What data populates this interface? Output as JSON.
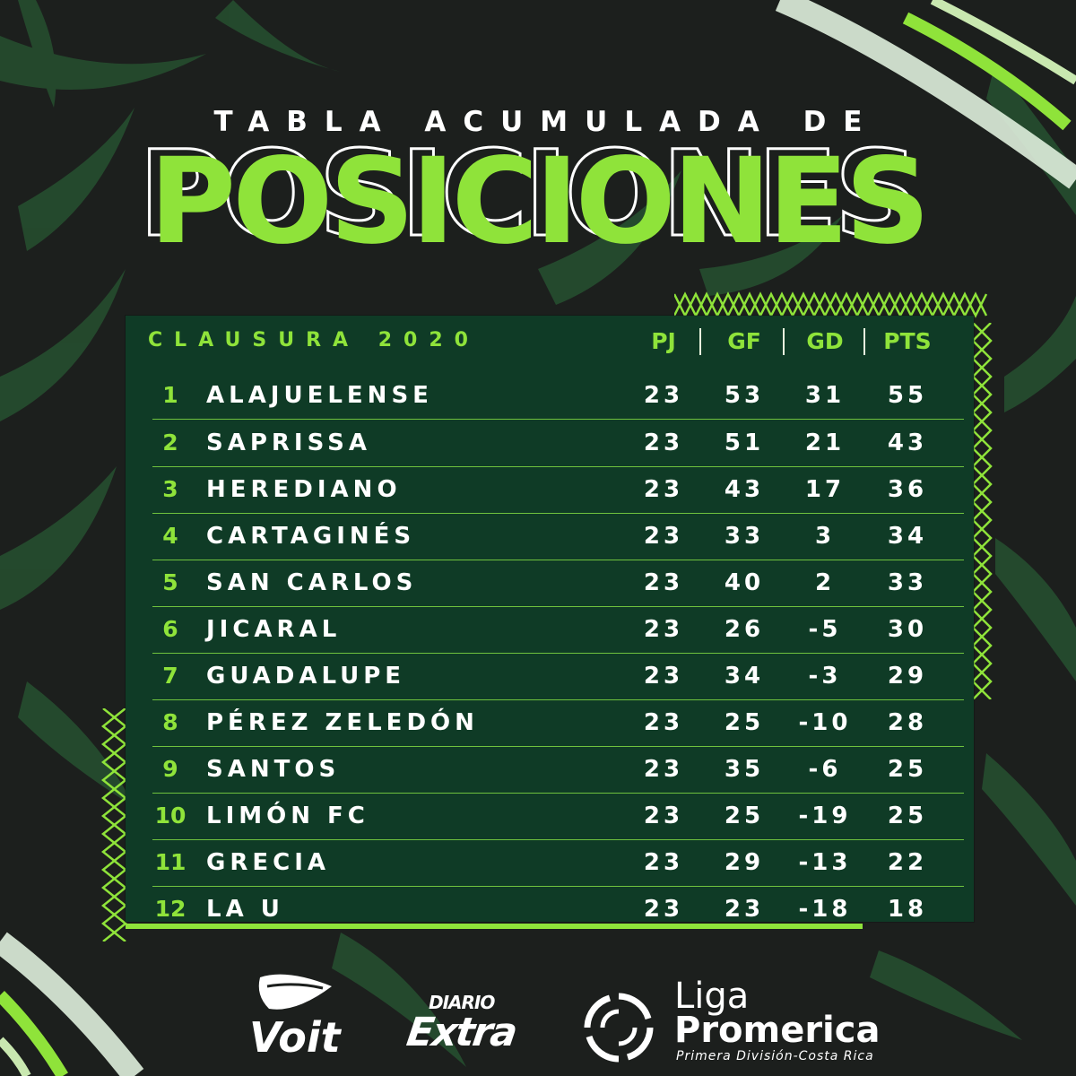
{
  "title": {
    "line1": "TABLA ACUMULADA DE",
    "line2": "POSICIONES"
  },
  "table": {
    "label": "CLAUSURA 2020",
    "columns": [
      "PJ",
      "GF",
      "GD",
      "PTS"
    ],
    "rows": [
      {
        "pos": "1",
        "team": "ALAJUELENSE",
        "pj": "23",
        "gf": "53",
        "gd": "31",
        "pts": "55"
      },
      {
        "pos": "2",
        "team": "SAPRISSA",
        "pj": "23",
        "gf": "51",
        "gd": "21",
        "pts": "43"
      },
      {
        "pos": "3",
        "team": "HEREDIANO",
        "pj": "23",
        "gf": "43",
        "gd": "17",
        "pts": "36"
      },
      {
        "pos": "4",
        "team": "CARTAGINÉS",
        "pj": "23",
        "gf": "33",
        "gd": "3",
        "pts": "34"
      },
      {
        "pos": "5",
        "team": "SAN CARLOS",
        "pj": "23",
        "gf": "40",
        "gd": "2",
        "pts": "33"
      },
      {
        "pos": "6",
        "team": "JICARAL",
        "pj": "23",
        "gf": "26",
        "gd": "-5",
        "pts": "30"
      },
      {
        "pos": "7",
        "team": "GUADALUPE",
        "pj": "23",
        "gf": "34",
        "gd": "-3",
        "pts": "29"
      },
      {
        "pos": "8",
        "team": "PÉREZ ZELEDÓN",
        "pj": "23",
        "gf": "25",
        "gd": "-10",
        "pts": "28"
      },
      {
        "pos": "9",
        "team": "SANTOS",
        "pj": "23",
        "gf": "35",
        "gd": "-6",
        "pts": "25"
      },
      {
        "pos": "10",
        "team": "LIMÓN FC",
        "pj": "23",
        "gf": "25",
        "gd": "-19",
        "pts": "25"
      },
      {
        "pos": "11",
        "team": "GRECIA",
        "pj": "23",
        "gf": "29",
        "gd": "-13",
        "pts": "22"
      },
      {
        "pos": "12",
        "team": "LA U",
        "pj": "23",
        "gf": "23",
        "gd": "-18",
        "pts": "18"
      }
    ]
  },
  "sponsors": {
    "voit": "Voit",
    "diario_top": "DIARIO",
    "diario_bottom": "Extra",
    "liga_line1": "Liga",
    "liga_line2": "Promerica",
    "liga_line3": "Primera División-Costa Rica"
  },
  "colors": {
    "accent": "#8fe33a",
    "panel": "#0f3b26",
    "background": "#1c1f1d"
  }
}
